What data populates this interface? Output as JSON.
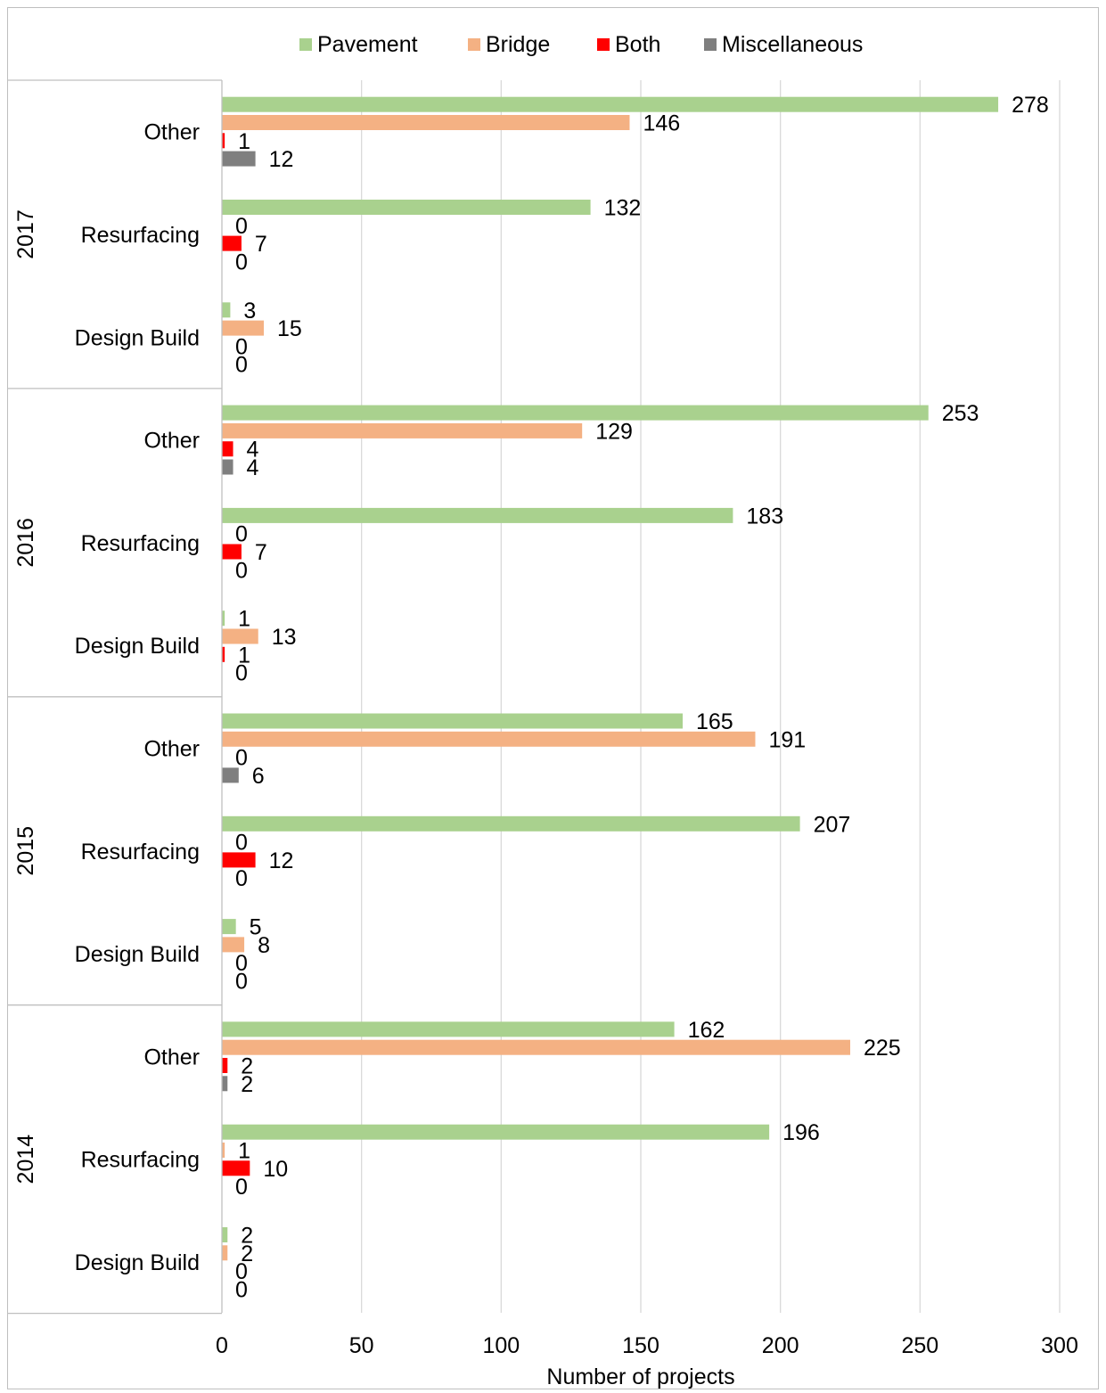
{
  "chart_data": {
    "type": "bar",
    "orientation": "horizontal",
    "xlabel": "Number of projects",
    "xlim": [
      0,
      300
    ],
    "xticks": [
      0,
      50,
      100,
      150,
      200,
      250,
      300
    ],
    "grid": true,
    "legend_position": "top",
    "series": [
      {
        "name": "Pavement",
        "color": "#a9d18e"
      },
      {
        "name": "Bridge",
        "color": "#f4b183"
      },
      {
        "name": "Both",
        "color": "#ff0000"
      },
      {
        "name": "Miscellaneous",
        "color": "#7f7f7f"
      }
    ],
    "groups": [
      {
        "year": "2017",
        "categories": [
          {
            "name": "Other",
            "values": [
              278,
              146,
              1,
              12
            ]
          },
          {
            "name": "Resurfacing",
            "values": [
              132,
              0,
              7,
              0
            ]
          },
          {
            "name": "Design Build",
            "values": [
              3,
              15,
              0,
              0
            ]
          }
        ]
      },
      {
        "year": "2016",
        "categories": [
          {
            "name": "Other",
            "values": [
              253,
              129,
              4,
              4
            ]
          },
          {
            "name": "Resurfacing",
            "values": [
              183,
              0,
              7,
              0
            ]
          },
          {
            "name": "Design Build",
            "values": [
              1,
              13,
              1,
              0
            ]
          }
        ]
      },
      {
        "year": "2015",
        "categories": [
          {
            "name": "Other",
            "values": [
              165,
              191,
              0,
              6
            ]
          },
          {
            "name": "Resurfacing",
            "values": [
              207,
              0,
              12,
              0
            ]
          },
          {
            "name": "Design Build",
            "values": [
              5,
              8,
              0,
              0
            ]
          }
        ]
      },
      {
        "year": "2014",
        "categories": [
          {
            "name": "Other",
            "values": [
              162,
              225,
              2,
              2
            ]
          },
          {
            "name": "Resurfacing",
            "values": [
              196,
              1,
              10,
              0
            ]
          },
          {
            "name": "Design Build",
            "values": [
              2,
              2,
              0,
              0
            ]
          }
        ]
      }
    ]
  }
}
